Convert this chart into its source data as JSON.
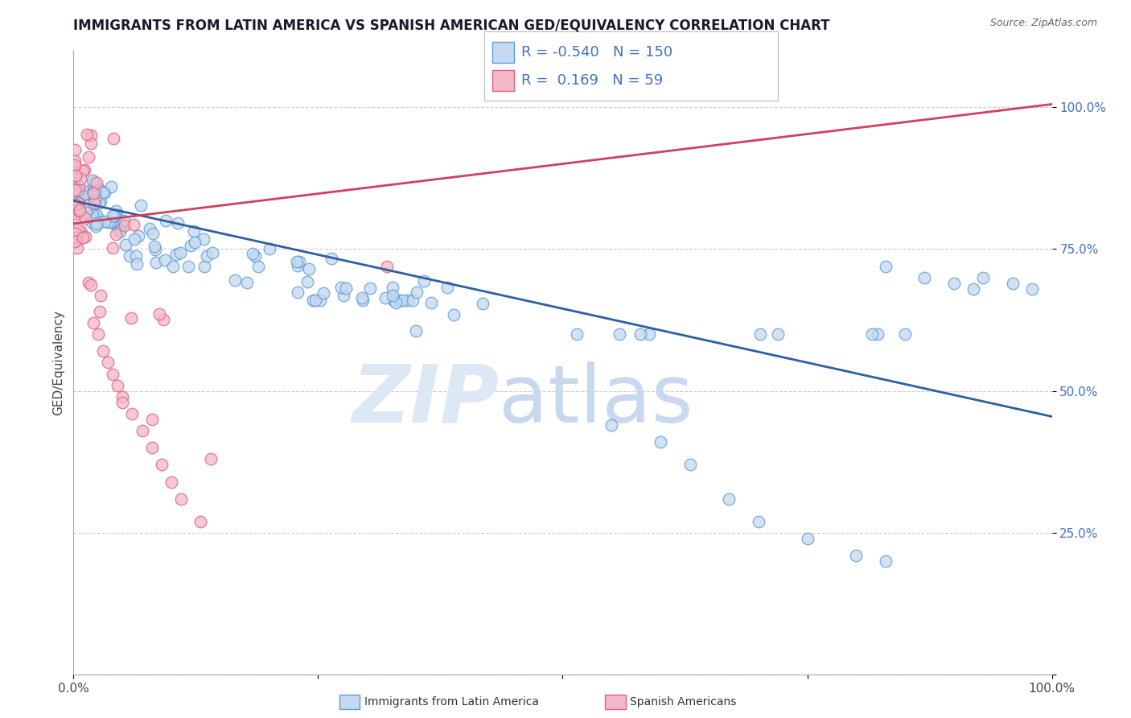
{
  "title": "IMMIGRANTS FROM LATIN AMERICA VS SPANISH AMERICAN GED/EQUIVALENCY CORRELATION CHART",
  "source": "Source: ZipAtlas.com",
  "ylabel": "GED/Equivalency",
  "r_blue": -0.54,
  "n_blue": 150,
  "r_pink": 0.169,
  "n_pink": 59,
  "legend_labels": [
    "Immigrants from Latin America",
    "Spanish Americans"
  ],
  "blue_fill": "#c5d9f0",
  "blue_edge": "#5b9bd5",
  "pink_fill": "#f4b8c8",
  "pink_edge": "#e06080",
  "blue_line": "#2e5fa3",
  "pink_line": "#d04060",
  "bg": "#ffffff",
  "grid_color": "#cccccc",
  "tick_color": "#4472c4",
  "title_color": "#1a1a2e",
  "source_color": "#666666",
  "watermark_zip_color": "#dde8f5",
  "watermark_atlas_color": "#c8d8ee"
}
